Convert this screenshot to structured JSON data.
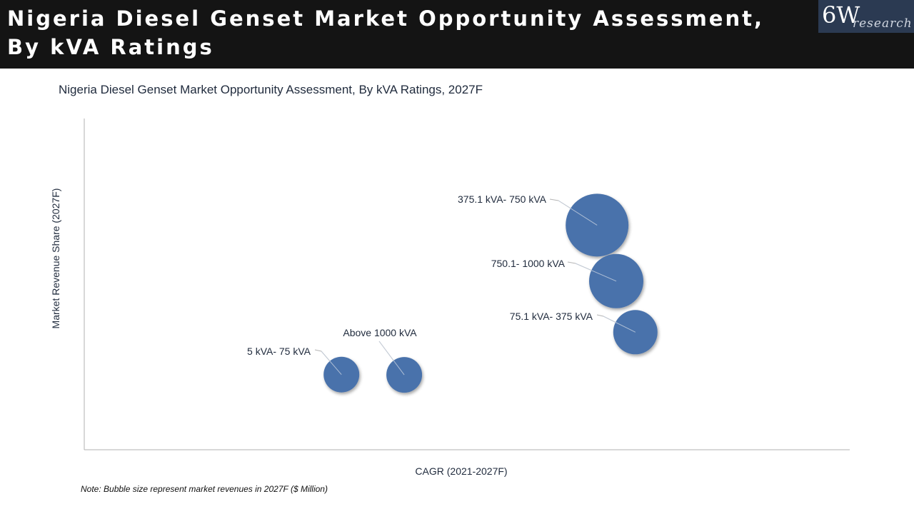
{
  "header": {
    "title_line1": "Nigeria Diesel Genset Market Opportunity Assessment,",
    "title_line2": "By kVA Ratings"
  },
  "logo": {
    "main": "6W",
    "sub": "research"
  },
  "colors": {
    "header_bg": "#141414",
    "logo_bg": "#2b3a52",
    "bubble_fill": "#4a72ab",
    "axis": "#b0b0b0",
    "leader": "#b5b5b5"
  },
  "chart_data": {
    "type": "scatter",
    "title": "Nigeria Diesel Genset Market Opportunity Assessment, By kVA Ratings, 2027F",
    "xlabel": "CAGR (2021-2027F)",
    "ylabel": "Market Revenue Share (2027F)",
    "xlim": [
      0,
      100
    ],
    "ylim": [
      0,
      100
    ],
    "grid": false,
    "bubble_size_note": "Note: Bubble size represent market revenues in 2027F ($ Million)",
    "points": [
      {
        "label": "5 kVA- 75 kVA",
        "x": 33.6,
        "y": 22.7,
        "size": 25
      },
      {
        "label": "Above 1000 kVA",
        "x": 41.8,
        "y": 22.6,
        "size": 25
      },
      {
        "label": "375.1 kVA- 750 kVA",
        "x": 67.0,
        "y": 67.8,
        "size": 44
      },
      {
        "label": "750.1- 1000 kVA",
        "x": 69.5,
        "y": 50.9,
        "size": 38
      },
      {
        "label": "75.1 kVA- 375 kVA",
        "x": 72.0,
        "y": 35.5,
        "size": 31
      }
    ]
  },
  "footer": {
    "note": "Note: Bubble size represent market revenues in 2027F ($ Million)"
  }
}
